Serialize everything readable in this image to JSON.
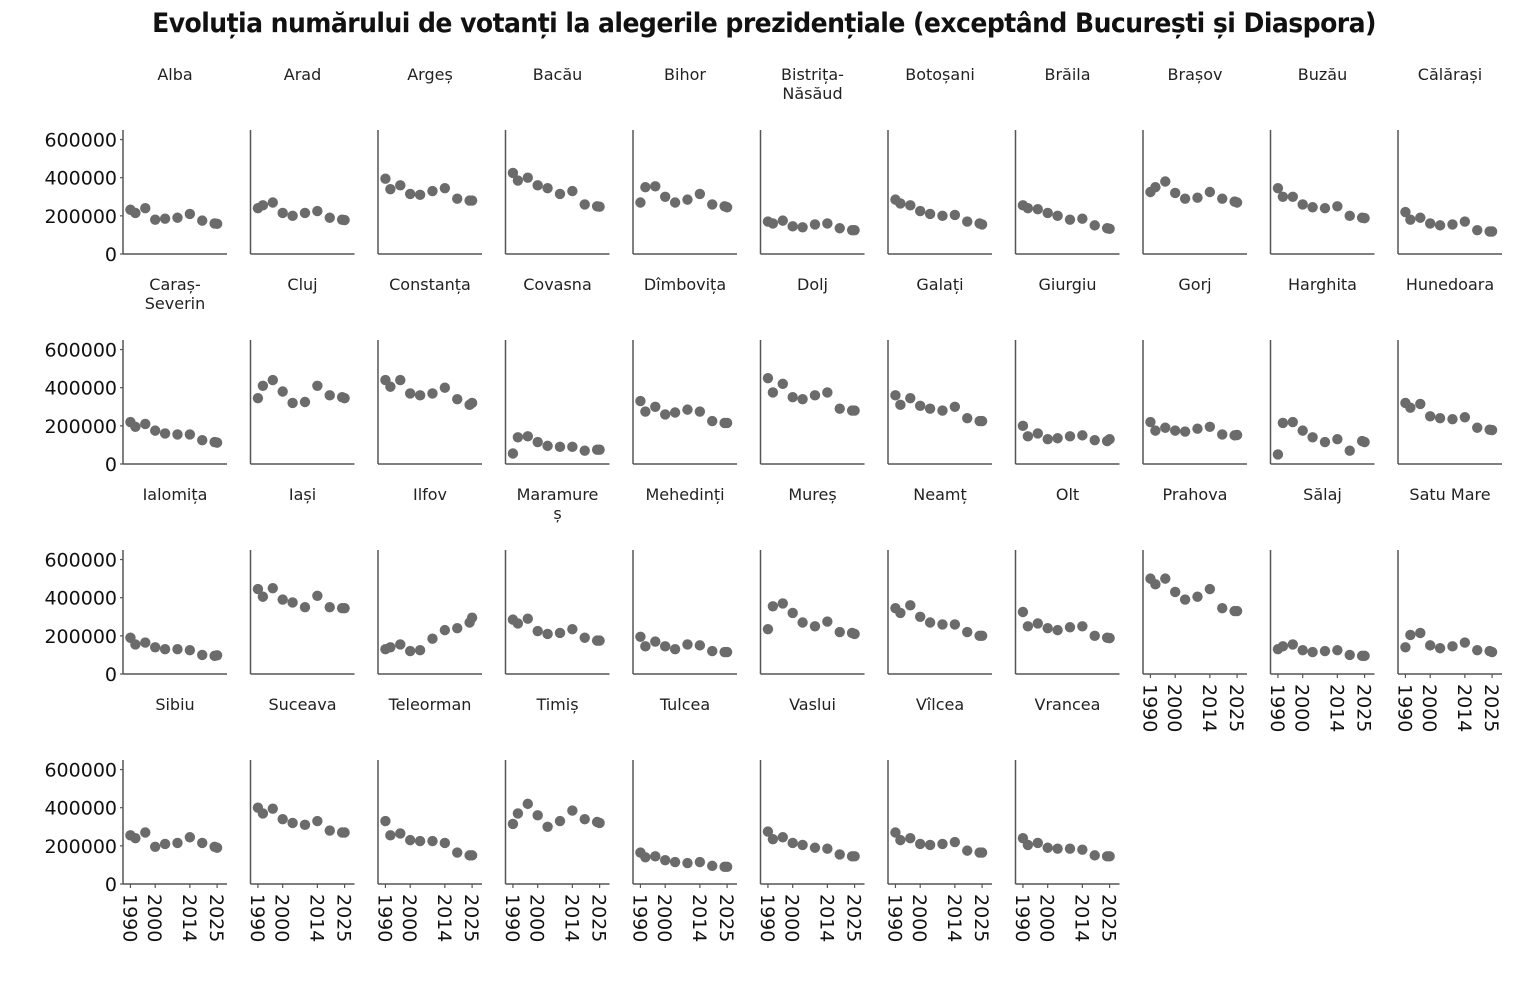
{
  "title": "Evoluția numărului de votanți la alegerile prezidențiale (exceptând București și Diaspora)",
  "colors": {
    "point": "#6b6b6b",
    "axis": "#555555",
    "text": "#111111"
  },
  "chart_data": {
    "type": "scatter",
    "layout": "small-multiples",
    "title": "Evoluția numărului de votanți la alegerile prezidențiale (exceptând București și Diaspora)",
    "xlabel": "",
    "ylabel": "",
    "x": [
      1990,
      1992,
      1996,
      2000,
      2004,
      2009,
      2014,
      2019,
      2024,
      2025
    ],
    "xticks": [
      1990,
      2000,
      2014,
      2025
    ],
    "xlim": [
      1987,
      2029
    ],
    "yticks": [
      0,
      200000,
      400000,
      600000
    ],
    "ylim": [
      0,
      650000
    ],
    "grid": false,
    "legend": "none",
    "panels": [
      {
        "name": "Alba",
        "values": [
          232000,
          215000,
          240000,
          180000,
          185000,
          190000,
          210000,
          175000,
          160000,
          158000
        ]
      },
      {
        "name": "Arad",
        "values": [
          240000,
          255000,
          270000,
          215000,
          200000,
          215000,
          225000,
          190000,
          180000,
          178000
        ]
      },
      {
        "name": "Argeș",
        "values": [
          395000,
          340000,
          360000,
          315000,
          310000,
          330000,
          345000,
          290000,
          280000,
          280000
        ]
      },
      {
        "name": "Bacău",
        "values": [
          425000,
          385000,
          400000,
          360000,
          345000,
          315000,
          330000,
          260000,
          250000,
          248000
        ]
      },
      {
        "name": "Bihor",
        "values": [
          270000,
          350000,
          355000,
          300000,
          270000,
          285000,
          315000,
          260000,
          250000,
          245000
        ]
      },
      {
        "name": "Bistrița-Năsăud",
        "values": [
          170000,
          160000,
          175000,
          145000,
          140000,
          155000,
          160000,
          135000,
          125000,
          125000
        ]
      },
      {
        "name": "Botoșani",
        "values": [
          285000,
          265000,
          255000,
          225000,
          210000,
          200000,
          205000,
          170000,
          160000,
          155000
        ]
      },
      {
        "name": "Brăila",
        "values": [
          255000,
          240000,
          235000,
          215000,
          200000,
          180000,
          185000,
          150000,
          135000,
          132000
        ]
      },
      {
        "name": "Brașov",
        "values": [
          325000,
          350000,
          380000,
          320000,
          290000,
          295000,
          325000,
          290000,
          275000,
          270000
        ]
      },
      {
        "name": "Buzău",
        "values": [
          345000,
          300000,
          300000,
          260000,
          245000,
          240000,
          250000,
          200000,
          190000,
          188000
        ]
      },
      {
        "name": "Călărași",
        "values": [
          220000,
          180000,
          190000,
          160000,
          150000,
          155000,
          170000,
          125000,
          118000,
          118000
        ]
      },
      {
        "name": "Caraș-Severin",
        "values": [
          220000,
          195000,
          210000,
          175000,
          160000,
          155000,
          155000,
          125000,
          115000,
          112000
        ]
      },
      {
        "name": "Cluj",
        "values": [
          345000,
          410000,
          440000,
          380000,
          320000,
          325000,
          410000,
          360000,
          350000,
          345000
        ]
      },
      {
        "name": "Constanța",
        "values": [
          440000,
          405000,
          440000,
          370000,
          360000,
          370000,
          400000,
          340000,
          310000,
          320000
        ]
      },
      {
        "name": "Covasna",
        "values": [
          55000,
          140000,
          145000,
          115000,
          95000,
          90000,
          90000,
          70000,
          75000,
          75000
        ]
      },
      {
        "name": "Dîmbovița",
        "values": [
          330000,
          275000,
          300000,
          260000,
          270000,
          285000,
          275000,
          225000,
          215000,
          215000
        ]
      },
      {
        "name": "Dolj",
        "values": [
          450000,
          375000,
          420000,
          350000,
          340000,
          360000,
          375000,
          290000,
          280000,
          280000
        ]
      },
      {
        "name": "Galați",
        "values": [
          360000,
          310000,
          345000,
          305000,
          290000,
          280000,
          300000,
          240000,
          225000,
          225000
        ]
      },
      {
        "name": "Giurgiu",
        "values": [
          200000,
          145000,
          160000,
          130000,
          135000,
          145000,
          150000,
          125000,
          120000,
          130000
        ]
      },
      {
        "name": "Gorj",
        "values": [
          220000,
          175000,
          190000,
          175000,
          170000,
          185000,
          195000,
          155000,
          150000,
          152000
        ]
      },
      {
        "name": "Harghita",
        "values": [
          50000,
          215000,
          220000,
          175000,
          140000,
          115000,
          130000,
          70000,
          120000,
          115000
        ]
      },
      {
        "name": "Hunedoara",
        "values": [
          320000,
          295000,
          315000,
          250000,
          240000,
          235000,
          245000,
          190000,
          180000,
          178000
        ]
      },
      {
        "name": "Ialomița",
        "values": [
          190000,
          155000,
          165000,
          140000,
          130000,
          130000,
          125000,
          100000,
          95000,
          98000
        ]
      },
      {
        "name": "Iași",
        "values": [
          445000,
          405000,
          450000,
          390000,
          375000,
          350000,
          410000,
          350000,
          345000,
          345000
        ]
      },
      {
        "name": "Ilfov",
        "values": [
          130000,
          140000,
          155000,
          120000,
          125000,
          185000,
          230000,
          240000,
          270000,
          295000
        ]
      },
      {
        "name": "Maramureș",
        "values": [
          285000,
          265000,
          290000,
          225000,
          210000,
          215000,
          235000,
          190000,
          175000,
          175000
        ]
      },
      {
        "name": "Mehedinți",
        "values": [
          195000,
          145000,
          170000,
          145000,
          130000,
          155000,
          150000,
          120000,
          115000,
          115000
        ]
      },
      {
        "name": "Mureș",
        "values": [
          235000,
          355000,
          370000,
          320000,
          270000,
          250000,
          275000,
          220000,
          215000,
          210000
        ]
      },
      {
        "name": "Neamț",
        "values": [
          345000,
          320000,
          360000,
          300000,
          270000,
          260000,
          260000,
          220000,
          200000,
          200000
        ]
      },
      {
        "name": "Olt",
        "values": [
          325000,
          250000,
          265000,
          240000,
          230000,
          245000,
          250000,
          200000,
          190000,
          188000
        ]
      },
      {
        "name": "Prahova",
        "values": [
          500000,
          470000,
          500000,
          430000,
          390000,
          405000,
          445000,
          345000,
          330000,
          330000
        ]
      },
      {
        "name": "Sălaj",
        "values": [
          130000,
          145000,
          155000,
          125000,
          115000,
          120000,
          125000,
          100000,
          95000,
          95000
        ]
      },
      {
        "name": "Satu Mare",
        "values": [
          140000,
          205000,
          215000,
          150000,
          135000,
          145000,
          165000,
          125000,
          120000,
          115000
        ]
      },
      {
        "name": "Sibiu",
        "values": [
          255000,
          240000,
          270000,
          195000,
          210000,
          215000,
          245000,
          215000,
          195000,
          190000
        ]
      },
      {
        "name": "Suceava",
        "values": [
          400000,
          370000,
          395000,
          340000,
          320000,
          310000,
          330000,
          280000,
          270000,
          270000
        ]
      },
      {
        "name": "Teleorman",
        "values": [
          330000,
          255000,
          265000,
          230000,
          225000,
          225000,
          215000,
          165000,
          150000,
          150000
        ]
      },
      {
        "name": "Timiș",
        "values": [
          315000,
          370000,
          420000,
          360000,
          300000,
          330000,
          385000,
          340000,
          325000,
          320000
        ]
      },
      {
        "name": "Tulcea",
        "values": [
          165000,
          140000,
          145000,
          125000,
          115000,
          110000,
          115000,
          95000,
          90000,
          90000
        ]
      },
      {
        "name": "Vaslui",
        "values": [
          275000,
          235000,
          245000,
          215000,
          205000,
          190000,
          185000,
          155000,
          145000,
          145000
        ]
      },
      {
        "name": "Vîlcea",
        "values": [
          270000,
          230000,
          240000,
          210000,
          205000,
          210000,
          220000,
          175000,
          165000,
          165000
        ]
      },
      {
        "name": "Vrancea",
        "values": [
          240000,
          205000,
          215000,
          190000,
          185000,
          185000,
          180000,
          150000,
          145000,
          145000
        ]
      }
    ]
  }
}
